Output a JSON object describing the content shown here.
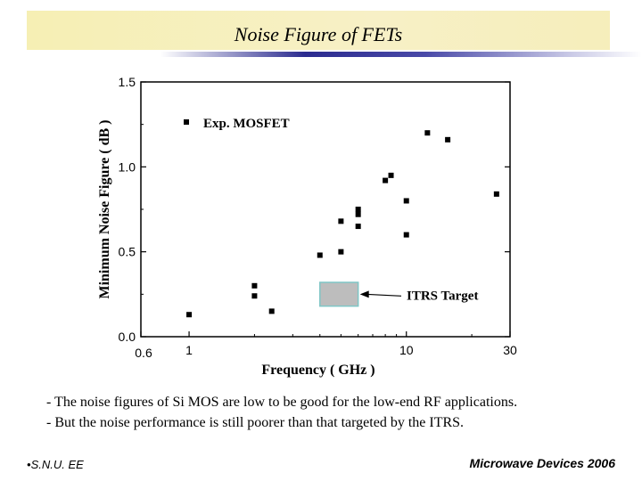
{
  "slide": {
    "title": "Noise Figure of FETs",
    "bullets": [
      "- The noise figures of Si MOS are low to be good for the low-end RF applications.",
      "- But the noise performance is still poorer than that targeted by the ITRS."
    ],
    "footer_left": "S.N.U. EE",
    "footer_right": "Microwave Devices 2006"
  },
  "chart_data": {
    "type": "scatter",
    "xlabel": "Frequency  ( GHz )",
    "ylabel": "Minimum Noise Figure  ( dB )",
    "x_scale": "log",
    "xlim": [
      0.6,
      30
    ],
    "ylim": [
      0.0,
      1.5
    ],
    "x_tick_labels": [
      "0.6",
      "1",
      "10",
      "30"
    ],
    "y_tick_labels": [
      "0.0",
      "0.5",
      "1.0",
      "1.5"
    ],
    "grid": false,
    "legend": {
      "position": "top-left",
      "entries": [
        "Exp. MOSFET"
      ]
    },
    "series": [
      {
        "name": "Exp. MOSFET",
        "x": [
          1.0,
          2.0,
          2.0,
          2.4,
          4.0,
          5.0,
          5.0,
          6.0,
          6.0,
          6.0,
          8.0,
          8.5,
          10.0,
          10.0,
          12.5,
          15.5,
          26.0
        ],
        "y": [
          0.13,
          0.3,
          0.24,
          0.15,
          0.48,
          0.5,
          0.68,
          0.65,
          0.72,
          0.75,
          0.92,
          0.95,
          0.8,
          0.6,
          1.2,
          1.16,
          0.84
        ]
      }
    ],
    "annotations": [
      {
        "type": "region",
        "label": "ITRS Target",
        "x_range": [
          4.0,
          6.0
        ],
        "y_range": [
          0.18,
          0.32
        ],
        "fill": "#bdbdbd",
        "stroke": "#7fc6c6"
      }
    ]
  }
}
